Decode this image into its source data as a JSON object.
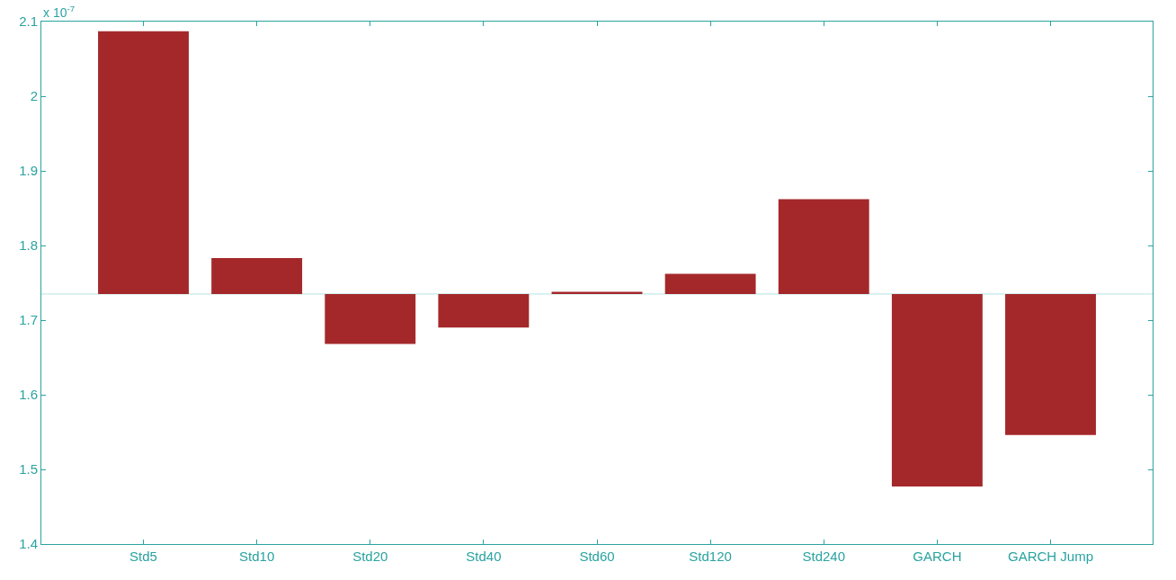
{
  "chart_data": {
    "type": "bar",
    "categories": [
      "Std5",
      "Std10",
      "Std20",
      "Std40",
      "Std60",
      "Std120",
      "Std240",
      "GARCH",
      "GARCH Jump"
    ],
    "values": [
      0.352,
      0.048,
      -0.067,
      -0.045,
      0.003,
      0.027,
      0.127,
      -0.258,
      -0.189
    ],
    "base": [
      1.735,
      1.735,
      1.735,
      1.735,
      1.735,
      1.735,
      1.735,
      1.735,
      1.735
    ],
    "color": "#a4282a",
    "ylim": [
      1.4,
      2.1
    ],
    "yticks": [
      1.4,
      1.5,
      1.6,
      1.7,
      1.8,
      1.9,
      2,
      2.1
    ],
    "ref_lines": [
      {
        "axis": "y",
        "value": 1.735,
        "color": "#b5e3e3"
      }
    ],
    "annotations": [
      "x 10$^{-7}$"
    ],
    "grid": false
  }
}
